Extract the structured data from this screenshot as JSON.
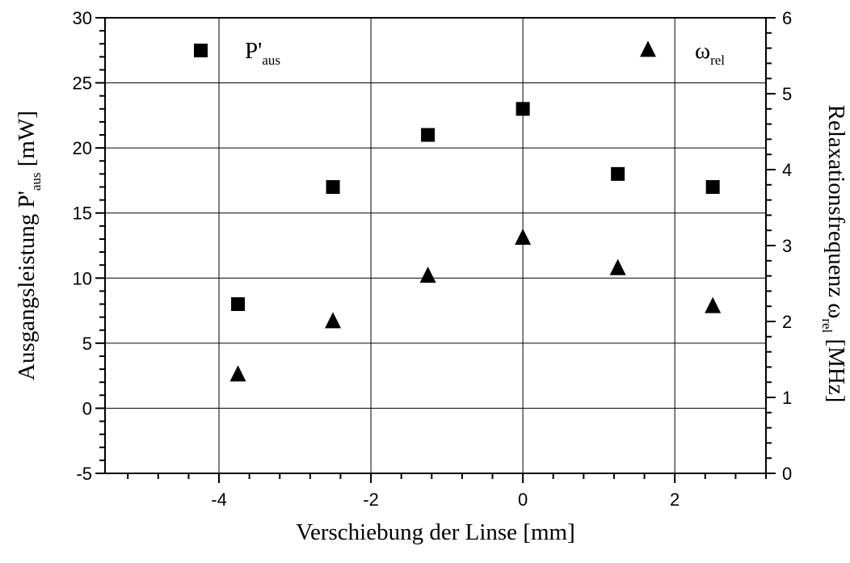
{
  "chart_data": {
    "type": "scatter",
    "x_axis": {
      "label": "Verschiebung der Linse [mm]",
      "range": [
        -5.5,
        3.2
      ],
      "major_ticks": [
        -4,
        -2,
        0,
        2
      ],
      "minor_step": 0.4
    },
    "y_axis_left": {
      "label_main": "Ausgangsleistung P'",
      "label_sub": "aus",
      "label_unit": " [mW]",
      "range": [
        -5,
        30
      ],
      "major_ticks": [
        -5,
        0,
        5,
        10,
        15,
        20,
        25,
        30
      ],
      "minor_step": 1
    },
    "y_axis_right": {
      "label_main": "Relaxationsfrequenz ω",
      "label_sub": "rel",
      "label_unit": " [MHz]",
      "range": [
        0,
        6
      ],
      "major_ticks": [
        0,
        1,
        2,
        3,
        4,
        5,
        6
      ],
      "minor_step": 0.2
    },
    "grid": true,
    "legend_placement": "top",
    "series": [
      {
        "name_main": "P'",
        "name_sub": "aus",
        "marker": "square",
        "axis": "left",
        "x": [
          -3.75,
          -2.5,
          -1.25,
          0,
          1.25,
          2.5
        ],
        "y": [
          8,
          17,
          21,
          23,
          18,
          17
        ]
      },
      {
        "name_main": "ω",
        "name_sub": "rel",
        "marker": "triangle",
        "axis": "right",
        "x": [
          -3.75,
          -2.5,
          -1.25,
          0,
          1.25,
          2.5
        ],
        "y": [
          1.3,
          2.0,
          2.6,
          3.1,
          2.7,
          2.2
        ]
      }
    ]
  }
}
